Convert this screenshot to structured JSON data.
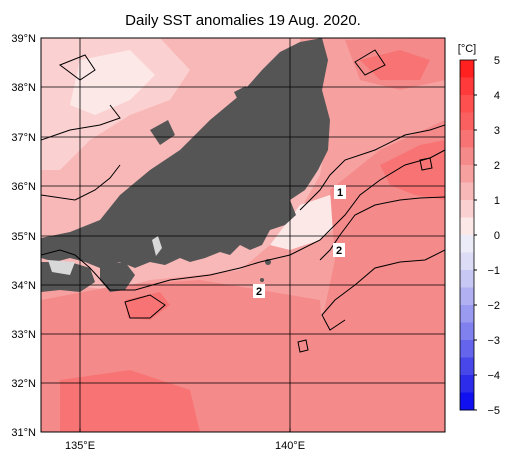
{
  "title": "Daily SST anomalies 19 Aug. 2020.",
  "lat_labels": [
    "39°N",
    "38°N",
    "37°N",
    "36°N",
    "35°N",
    "34°N",
    "33°N",
    "32°N",
    "31°N"
  ],
  "lon_labels": [
    "135°E",
    "140°E"
  ],
  "colorbar": {
    "unit": "[°C]",
    "ticks": [
      "5",
      "4",
      "3",
      "2",
      "1",
      "0",
      "−1",
      "−2",
      "−3",
      "−4",
      "−5"
    ],
    "bins": [
      {
        "value": 4.75,
        "color": "#ff2020"
      },
      {
        "value": 4.25,
        "color": "#ff3a3a"
      },
      {
        "value": 3.75,
        "color": "#ff5050"
      },
      {
        "value": 3.25,
        "color": "#fb6060"
      },
      {
        "value": 2.75,
        "color": "#f87474"
      },
      {
        "value": 2.25,
        "color": "#f58a8a"
      },
      {
        "value": 1.75,
        "color": "#f6a0a0"
      },
      {
        "value": 1.25,
        "color": "#f8b8b8"
      },
      {
        "value": 0.75,
        "color": "#fbd0d0"
      },
      {
        "value": 0.25,
        "color": "#fde8e8"
      },
      {
        "value": -0.25,
        "color": "#ececf8"
      },
      {
        "value": -0.75,
        "color": "#dcdcf6"
      },
      {
        "value": -1.25,
        "color": "#c8c8f4"
      },
      {
        "value": -1.75,
        "color": "#b0b0f2"
      },
      {
        "value": -2.25,
        "color": "#9a9af0"
      },
      {
        "value": -2.75,
        "color": "#8080ee"
      },
      {
        "value": -3.25,
        "color": "#6464ec"
      },
      {
        "value": -3.75,
        "color": "#4848ea"
      },
      {
        "value": -4.25,
        "color": "#2c2cea"
      },
      {
        "value": -4.75,
        "color": "#1010f0"
      }
    ]
  },
  "contour_labels": [
    "1",
    "2",
    "2"
  ],
  "colors": {
    "land": "#555555",
    "lake": "#d8d8d8",
    "grid": "#000000",
    "contour": "#000000"
  }
}
